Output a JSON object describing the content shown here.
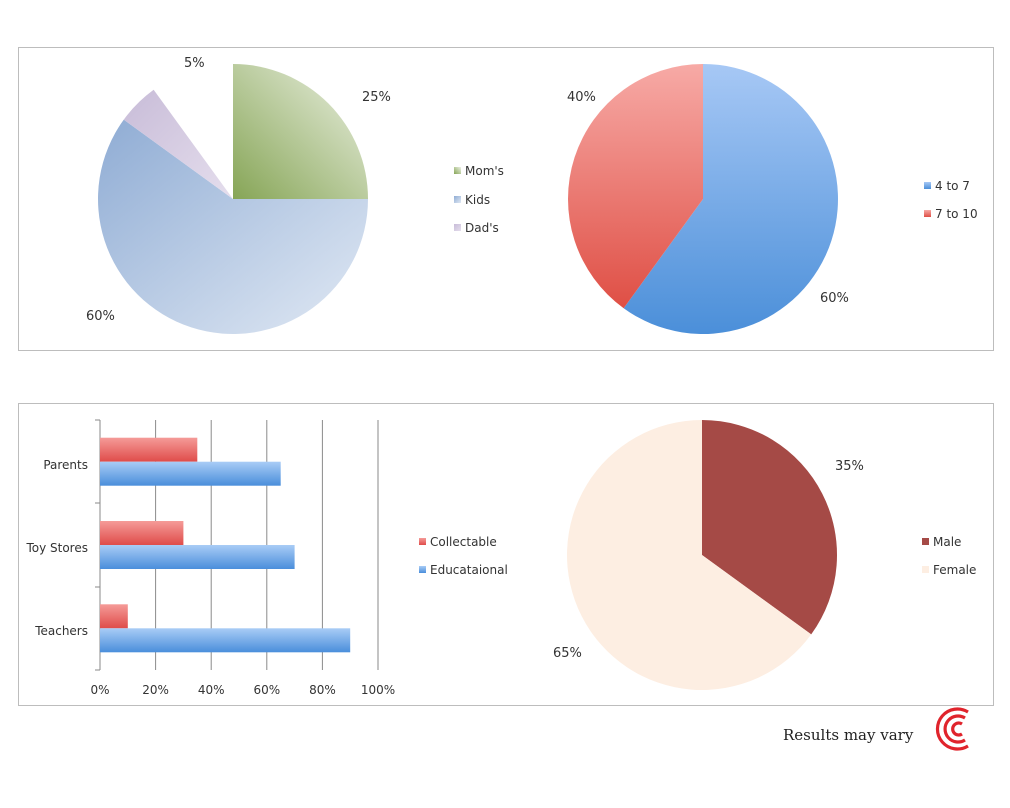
{
  "footer": {
    "note": "Results may vary",
    "logo_icon": "concentric-c-logo-icon",
    "logo_color": "#e0242c"
  },
  "chart_data": [
    {
      "type": "pie",
      "categories": [
        "Mom's",
        "Kids",
        "Dad's"
      ],
      "values": [
        25,
        60,
        5
      ],
      "value_labels": [
        "25%",
        "60%",
        "5%"
      ],
      "colors": [
        "#9bbb59",
        "#95b3d7",
        "#ccc0da"
      ],
      "legend": "right"
    },
    {
      "type": "pie",
      "categories": [
        "4 to 7",
        "7 to 10"
      ],
      "values": [
        60,
        40
      ],
      "value_labels": [
        "60%",
        "40%"
      ],
      "colors": [
        "#4f8fd9",
        "#e85d5d"
      ],
      "legend": "right"
    },
    {
      "type": "bar",
      "orientation": "horizontal",
      "categories": [
        "Parents",
        "Toy Stores",
        "Teachers"
      ],
      "series": [
        {
          "name": "Collectable",
          "values": [
            35,
            30,
            10
          ],
          "color": "#e45a5a"
        },
        {
          "name": "Educataional",
          "values": [
            65,
            70,
            90
          ],
          "color": "#4f8fd9"
        }
      ],
      "xlim": [
        0,
        100
      ],
      "xticks": [
        "0%",
        "20%",
        "40%",
        "60%",
        "80%",
        "100%"
      ],
      "grid": true,
      "legend": "right"
    },
    {
      "type": "pie",
      "categories": [
        "Male",
        "Female"
      ],
      "values": [
        35,
        65
      ],
      "value_labels": [
        "35%",
        "65%"
      ],
      "colors": [
        "#a54a46",
        "#fdeee2"
      ],
      "legend": "right"
    }
  ]
}
